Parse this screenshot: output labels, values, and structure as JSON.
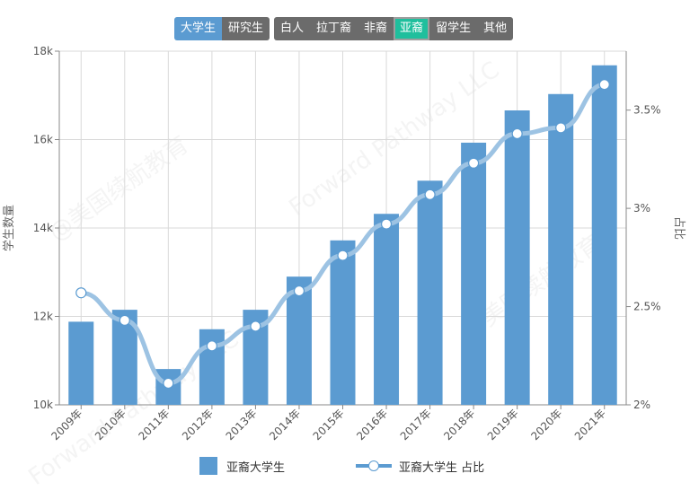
{
  "tabs": {
    "level": [
      "大学生",
      "研究生"
    ],
    "level_active": 0,
    "ethnicity": [
      "白人",
      "拉丁裔",
      "非裔",
      "亚裔",
      "留学生",
      "其他"
    ],
    "ethnicity_active": 3
  },
  "watermark": [
    "@美国续航教育",
    "Forward Pathway LLC"
  ],
  "colors": {
    "bar": "#5b9bd1",
    "line": "#9dc3e3",
    "tab_default": "#6b6b6b",
    "tab_active_level": "#5b9bd1",
    "tab_active_eth": "#1fbf9d"
  },
  "chart_data": {
    "type": "bar",
    "categories": [
      "2009年",
      "2010年",
      "2011年",
      "2012年",
      "2013年",
      "2014年",
      "2015年",
      "2016年",
      "2017年",
      "2018年",
      "2019年",
      "2020年",
      "2021年"
    ],
    "series": [
      {
        "name": "亚裔大学生",
        "type": "bar",
        "axis": "left",
        "values": [
          11880,
          12150,
          10810,
          11710,
          12150,
          12900,
          13720,
          14320,
          15070,
          15930,
          16660,
          17030,
          17680
        ]
      },
      {
        "name": "亚裔大学生 占比",
        "type": "line",
        "axis": "right",
        "values": [
          2.57,
          2.43,
          2.11,
          2.3,
          2.4,
          2.58,
          2.76,
          2.92,
          3.07,
          3.23,
          3.38,
          3.41,
          3.63
        ]
      }
    ],
    "y_left": {
      "label": "学生数量",
      "min": 10000,
      "max": 18000,
      "ticks": [
        10000,
        12000,
        14000,
        16000,
        18000
      ],
      "tick_labels": [
        "10k",
        "12k",
        "14k",
        "16k",
        "18k"
      ]
    },
    "y_right": {
      "label": "占比",
      "min": 2.0,
      "max": 3.8,
      "ticks": [
        2.0,
        2.5,
        3.0,
        3.5
      ],
      "tick_labels": [
        "2%",
        "2.5%",
        "3%",
        "3.5%"
      ]
    },
    "grid": true,
    "legend_position": "bottom"
  }
}
